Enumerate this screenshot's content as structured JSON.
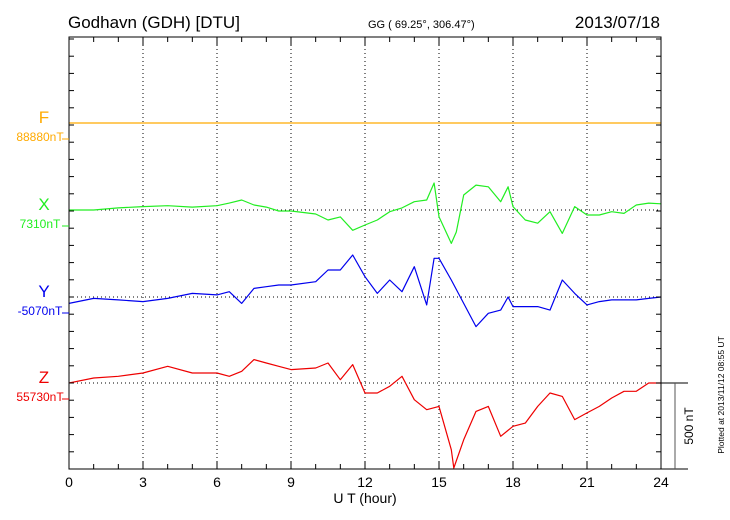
{
  "header": {
    "station": "Godhavn (GDH)  [DTU]",
    "coords": "GG ( 69.25°, 306.47°)",
    "date": "2013/07/18"
  },
  "footer": {
    "plotted": "Plotted at 2013/11/12 08:55 UT"
  },
  "scale_label": "500 nT",
  "chart_data": {
    "type": "line",
    "title": "Godhavn (GDH)  [DTU]",
    "xlabel": "U T (hour)",
    "ylabel": "",
    "xlim": [
      0,
      24
    ],
    "xticks": [
      "0",
      "3",
      "6",
      "9",
      "12",
      "15",
      "18",
      "21",
      "24"
    ],
    "scale_nT": 500,
    "grid": true,
    "series": [
      {
        "name": "F",
        "baseline_label": "88880nT",
        "color": "#ffaa00",
        "x": [
          0,
          24
        ],
        "values": [
          0,
          0
        ]
      },
      {
        "name": "X",
        "baseline_label": "7310nT",
        "color": "#22ee22",
        "x": [
          0,
          1,
          2,
          3,
          4,
          5,
          6,
          6.5,
          7,
          7.5,
          8,
          8.5,
          9,
          10,
          10.5,
          11,
          11.5,
          12,
          12.5,
          13,
          13.5,
          14,
          14.5,
          14.8,
          15,
          15.5,
          15.7,
          16,
          16.5,
          17,
          17.5,
          17.8,
          18,
          18.5,
          19,
          19.5,
          20,
          20.5,
          21,
          21.5,
          22,
          22.5,
          23,
          23.5,
          24
        ],
        "values": [
          0,
          0,
          12,
          20,
          25,
          17,
          25,
          40,
          58,
          29,
          17,
          -6,
          -6,
          -23,
          -58,
          -40,
          -118,
          -87,
          -58,
          -10,
          12,
          48,
          58,
          157,
          -39,
          -194,
          -128,
          87,
          145,
          135,
          48,
          135,
          20,
          -58,
          -77,
          -10,
          -136,
          20,
          -29,
          -29,
          -10,
          -20,
          29,
          40,
          36
        ]
      },
      {
        "name": "Y",
        "baseline_label": "-5070nT",
        "color": "#0000ee",
        "x": [
          0,
          1,
          2,
          3,
          4,
          5,
          6,
          6.5,
          7,
          7.5,
          8,
          8.5,
          9,
          10,
          10.5,
          11,
          11.5,
          12,
          12.5,
          13,
          13.5,
          14,
          14.5,
          14.8,
          15,
          15.5,
          16,
          16.5,
          17,
          17.5,
          17.8,
          18,
          18.5,
          19,
          19.5,
          20,
          20.5,
          21,
          21.5,
          22,
          22.5,
          23,
          23.5,
          24
        ],
        "values": [
          -37,
          -8,
          -17,
          -27,
          -8,
          21,
          12,
          31,
          -37,
          50,
          60,
          70,
          70,
          89,
          157,
          157,
          244,
          118,
          21,
          99,
          31,
          176,
          -46,
          225,
          225,
          99,
          -37,
          -172,
          -95,
          -76,
          0,
          -56,
          -56,
          -56,
          -76,
          99,
          21,
          -46,
          -27,
          -17,
          -17,
          -17,
          -8,
          0
        ]
      },
      {
        "name": "Z",
        "baseline_label": "55730nT",
        "color": "#ee0000",
        "x": [
          0,
          1,
          2,
          3,
          4,
          5,
          6,
          6.5,
          7,
          7.5,
          8,
          8.5,
          9,
          10,
          10.5,
          11,
          11.5,
          12,
          12.5,
          13,
          13.5,
          14,
          14.5,
          15,
          15.5,
          15.6,
          16,
          16.5,
          17,
          17.5,
          18,
          18.5,
          19,
          19.5,
          20,
          20.5,
          21,
          21.5,
          22,
          22.5,
          23,
          23.5,
          24
        ],
        "values": [
          0,
          29,
          39,
          58,
          97,
          58,
          58,
          39,
          68,
          136,
          116,
          97,
          78,
          87,
          116,
          19,
          107,
          -58,
          -58,
          -19,
          39,
          -97,
          -155,
          -136,
          -388,
          -494,
          -330,
          -165,
          -136,
          -310,
          -252,
          -233,
          -136,
          -58,
          -78,
          -213,
          -174,
          -136,
          -87,
          -48,
          -48,
          0,
          0
        ]
      }
    ]
  }
}
